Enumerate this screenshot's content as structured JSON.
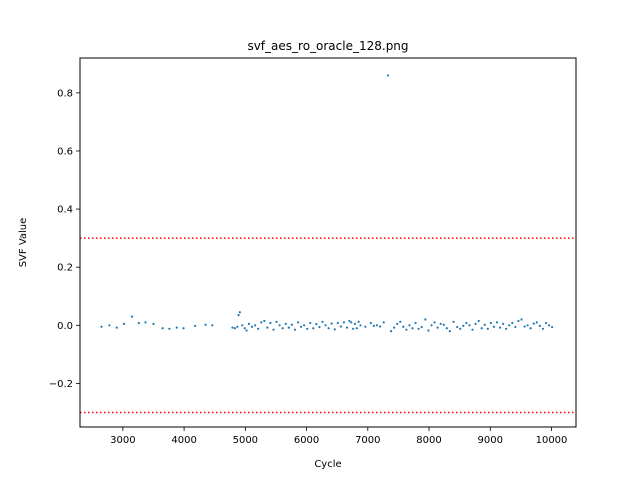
{
  "chart_data": {
    "type": "scatter",
    "title": "svf_aes_ro_oracle_128.png",
    "xlabel": "Cycle",
    "ylabel": "SVF Value",
    "xlim": [
      2300,
      10400
    ],
    "ylim": [
      -0.35,
      0.92
    ],
    "xticks": [
      3000,
      4000,
      5000,
      6000,
      7000,
      8000,
      9000,
      10000
    ],
    "xtick_labels": [
      "3000",
      "4000",
      "5000",
      "6000",
      "7000",
      "8000",
      "9000",
      "10000"
    ],
    "yticks": [
      -0.2,
      0.0,
      0.2,
      0.4,
      0.6,
      0.8
    ],
    "ytick_labels": [
      "−0.2",
      "0.0",
      "0.2",
      "0.4",
      "0.6",
      "0.8"
    ],
    "grid": false,
    "point_color": "#1f77b4",
    "threshold_color": "#ff0000",
    "thresholds": [
      0.3,
      -0.3
    ],
    "series": [
      {
        "x": [
          2650,
          2780,
          2900,
          3020,
          3150,
          3260,
          3370,
          3500,
          3650,
          3760,
          3880,
          3990,
          4180,
          4350,
          4460,
          4790,
          4830,
          4870,
          4890,
          4910,
          4950,
          4990,
          5020,
          5060,
          5110,
          5160,
          5210,
          5260,
          5310,
          5360,
          5410,
          5460,
          5510,
          5560,
          5610,
          5660,
          5710,
          5760,
          5810,
          5860,
          5910,
          5960,
          6010,
          6060,
          6110,
          6160,
          6210,
          6260,
          6310,
          6360,
          6410,
          6460,
          6510,
          6560,
          6610,
          6660,
          6700,
          6730,
          6760,
          6790,
          6820,
          6850,
          6880,
          6960,
          7050,
          7100,
          7150,
          7200,
          7260,
          7330,
          7380,
          7430,
          7480,
          7530,
          7580,
          7630,
          7680,
          7730,
          7780,
          7830,
          7880,
          7940,
          7990,
          8040,
          8090,
          8140,
          8190,
          8240,
          8290,
          8340,
          8400,
          8460,
          8510,
          8560,
          8610,
          8660,
          8710,
          8760,
          8810,
          8860,
          8910,
          8960,
          9010,
          9060,
          9110,
          9160,
          9210,
          9260,
          9310,
          9360,
          9410,
          9460,
          9510,
          9560,
          9610,
          9660,
          9710,
          9760,
          9810,
          9860,
          9910,
          9960,
          10010
        ],
        "y": [
          -0.005,
          0.0,
          -0.008,
          0.005,
          0.03,
          0.008,
          0.01,
          0.005,
          -0.01,
          -0.012,
          -0.008,
          -0.01,
          -0.002,
          0.002,
          0.0,
          -0.008,
          -0.01,
          -0.005,
          0.035,
          0.045,
          0.0,
          -0.01,
          -0.018,
          0.005,
          -0.005,
          0.0,
          -0.012,
          0.01,
          0.015,
          -0.008,
          0.008,
          -0.015,
          0.012,
          0.0,
          -0.01,
          0.005,
          -0.008,
          0.002,
          -0.015,
          0.01,
          -0.005,
          0.0,
          -0.012,
          0.008,
          -0.01,
          0.004,
          -0.006,
          0.012,
          0.0,
          -0.01,
          0.006,
          -0.014,
          0.008,
          -0.004,
          0.01,
          -0.008,
          0.015,
          0.01,
          -0.012,
          0.005,
          -0.01,
          0.012,
          0.0,
          -0.005,
          0.008,
          -0.002,
          0.0,
          -0.004,
          0.01,
          0.86,
          -0.02,
          -0.008,
          0.005,
          0.012,
          -0.005,
          -0.015,
          0.0,
          -0.01,
          0.008,
          -0.012,
          -0.006,
          0.02,
          -0.018,
          0.0,
          0.01,
          -0.008,
          0.005,
          0.002,
          -0.01,
          -0.02,
          0.012,
          -0.006,
          -0.012,
          -0.002,
          0.008,
          0.0,
          -0.015,
          0.005,
          0.015,
          -0.01,
          0.002,
          -0.012,
          0.008,
          -0.005,
          0.01,
          -0.008,
          0.005,
          -0.012,
          0.0,
          0.008,
          -0.006,
          0.015,
          0.02,
          -0.004,
          0.0,
          -0.01,
          0.006,
          0.01,
          -0.002,
          -0.012,
          0.008,
          0.0,
          -0.006
        ]
      }
    ]
  }
}
